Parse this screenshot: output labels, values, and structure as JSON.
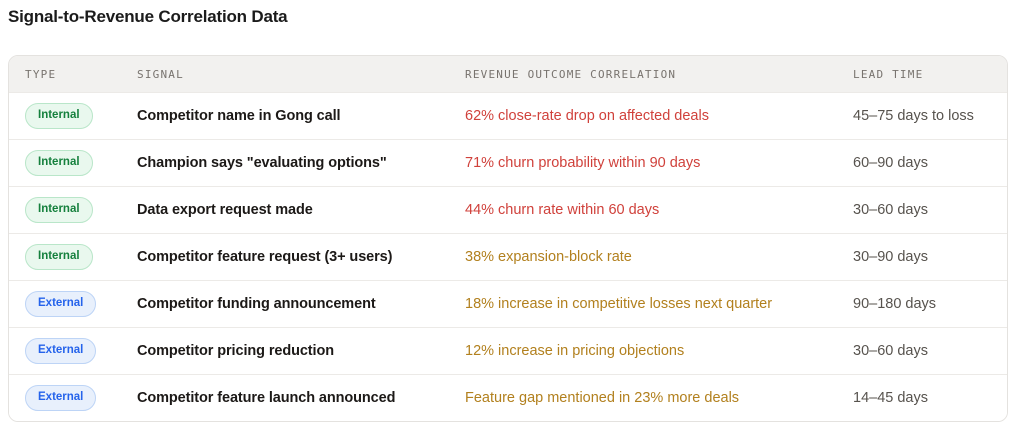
{
  "page": {
    "title": "Signal-to-Revenue Correlation Data"
  },
  "colors": {
    "correlation_high": "#d0413b",
    "correlation_medium": "#b2801e",
    "badge_internal_text": "#15803d",
    "badge_internal_bg": "#e9f8ee",
    "badge_internal_border": "#b9e6c9",
    "badge_external_text": "#2563eb",
    "badge_external_bg": "#e8f0fc",
    "badge_external_border": "#bdd4f6",
    "header_bg": "#f2f1ef",
    "header_text": "#78736e",
    "card_border": "#e4e2df"
  },
  "table": {
    "columns": [
      {
        "key": "type",
        "label": "TYPE"
      },
      {
        "key": "signal",
        "label": "SIGNAL"
      },
      {
        "key": "correlation",
        "label": "REVENUE OUTCOME CORRELATION"
      },
      {
        "key": "lead_time",
        "label": "LEAD TIME"
      }
    ],
    "rows": [
      {
        "type": "Internal",
        "signal": "Competitor name in Gong call",
        "correlation": "62% close-rate drop on affected deals",
        "severity": "high",
        "lead_time": "45–75 days to loss"
      },
      {
        "type": "Internal",
        "signal": "Champion says \"evaluating options\"",
        "correlation": "71% churn probability within 90 days",
        "severity": "high",
        "lead_time": "60–90 days"
      },
      {
        "type": "Internal",
        "signal": "Data export request made",
        "correlation": "44% churn rate within 60 days",
        "severity": "high",
        "lead_time": "30–60 days"
      },
      {
        "type": "Internal",
        "signal": "Competitor feature request (3+ users)",
        "correlation": "38% expansion-block rate",
        "severity": "medium",
        "lead_time": "30–90 days"
      },
      {
        "type": "External",
        "signal": "Competitor funding announcement",
        "correlation": "18% increase in competitive losses next quarter",
        "severity": "medium",
        "lead_time": "90–180 days"
      },
      {
        "type": "External",
        "signal": "Competitor pricing reduction",
        "correlation": "12% increase in pricing objections",
        "severity": "medium",
        "lead_time": "30–60 days"
      },
      {
        "type": "External",
        "signal": "Competitor feature launch announced",
        "correlation": "Feature gap mentioned in 23% more deals",
        "severity": "medium",
        "lead_time": "14–45 days"
      }
    ]
  }
}
